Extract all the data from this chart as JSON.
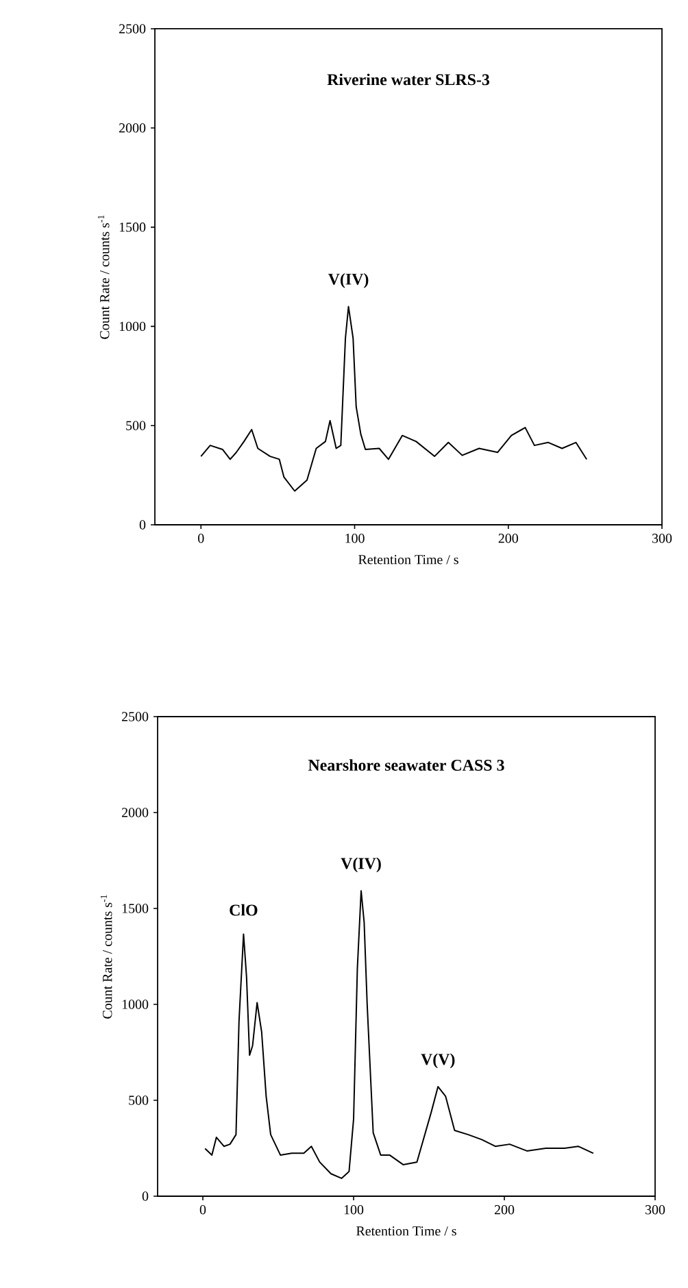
{
  "chart_data": [
    {
      "type": "line",
      "title": "Riverine water SLRS-3",
      "xlabel": "Retention Time / s",
      "ylabel": "Count Rate / counts s$^{-1}$",
      "xlim": [
        -30,
        300
      ],
      "ylim": [
        0,
        2500
      ],
      "xticks": [
        0,
        100,
        200,
        300
      ],
      "yticks": [
        0,
        500,
        1000,
        1500,
        2000,
        2500
      ],
      "annotations": [
        {
          "text": "V(IV)",
          "x": 96,
          "y": 1100
        }
      ],
      "series": [
        {
          "color": "#000000",
          "x": [
            0,
            6,
            14,
            19,
            23,
            28,
            33,
            37,
            45,
            51,
            54,
            61,
            69,
            75,
            81,
            84,
            88,
            91,
            94,
            96,
            99,
            101,
            104,
            107,
            116,
            122,
            131,
            140,
            152,
            161,
            170,
            181,
            193,
            202,
            211,
            217,
            226,
            235,
            244,
            251
          ],
          "values": [
            345,
            400,
            380,
            330,
            365,
            420,
            480,
            385,
            345,
            330,
            240,
            170,
            225,
            385,
            420,
            525,
            385,
            400,
            940,
            1100,
            940,
            595,
            457,
            380,
            385,
            330,
            450,
            420,
            345,
            415,
            350,
            385,
            365,
            450,
            490,
            400,
            415,
            385,
            415,
            330
          ]
        }
      ]
    },
    {
      "type": "line",
      "title": "Nearshore seawater CASS 3",
      "xlabel": "Retention Time / s",
      "ylabel": "Count Rate / counts s$^{-1}$",
      "xlim": [
        -30,
        300
      ],
      "ylim": [
        0,
        2500
      ],
      "xticks": [
        0,
        100,
        200,
        300
      ],
      "yticks": [
        0,
        500,
        1000,
        1500,
        2000,
        2500
      ],
      "annotations": [
        {
          "text": "ClO",
          "x": 27,
          "y": 1366
        },
        {
          "text": "V(IV)",
          "x": 105,
          "y": 1592
        },
        {
          "text": "V(V)",
          "x": 156,
          "y": 571
        }
      ],
      "series": [
        {
          "color": "#000000",
          "x": [
            1.5,
            6,
            9,
            14,
            18,
            22,
            24,
            27,
            29,
            31,
            33,
            36,
            39,
            42,
            45,
            51.5,
            59,
            67,
            72,
            77.5,
            85,
            92,
            97,
            100,
            102.5,
            105,
            107,
            109,
            113,
            118,
            124,
            133,
            142,
            151.5,
            156,
            161,
            167,
            176,
            185,
            194,
            203.5,
            215,
            227.5,
            240,
            249,
            259
          ],
          "values": [
            248,
            214,
            307,
            260,
            271,
            321,
            914,
            1366,
            1142,
            735,
            785,
            1009,
            857,
            521,
            321,
            214,
            224,
            224,
            260,
            178,
            117,
            93,
            129,
            402,
            1188,
            1592,
            1428,
            1000,
            331,
            214,
            214,
            164,
            178,
            438,
            571,
            521,
            343,
            321,
            295,
            260,
            271,
            236,
            250,
            250,
            260,
            224
          ]
        }
      ]
    }
  ]
}
